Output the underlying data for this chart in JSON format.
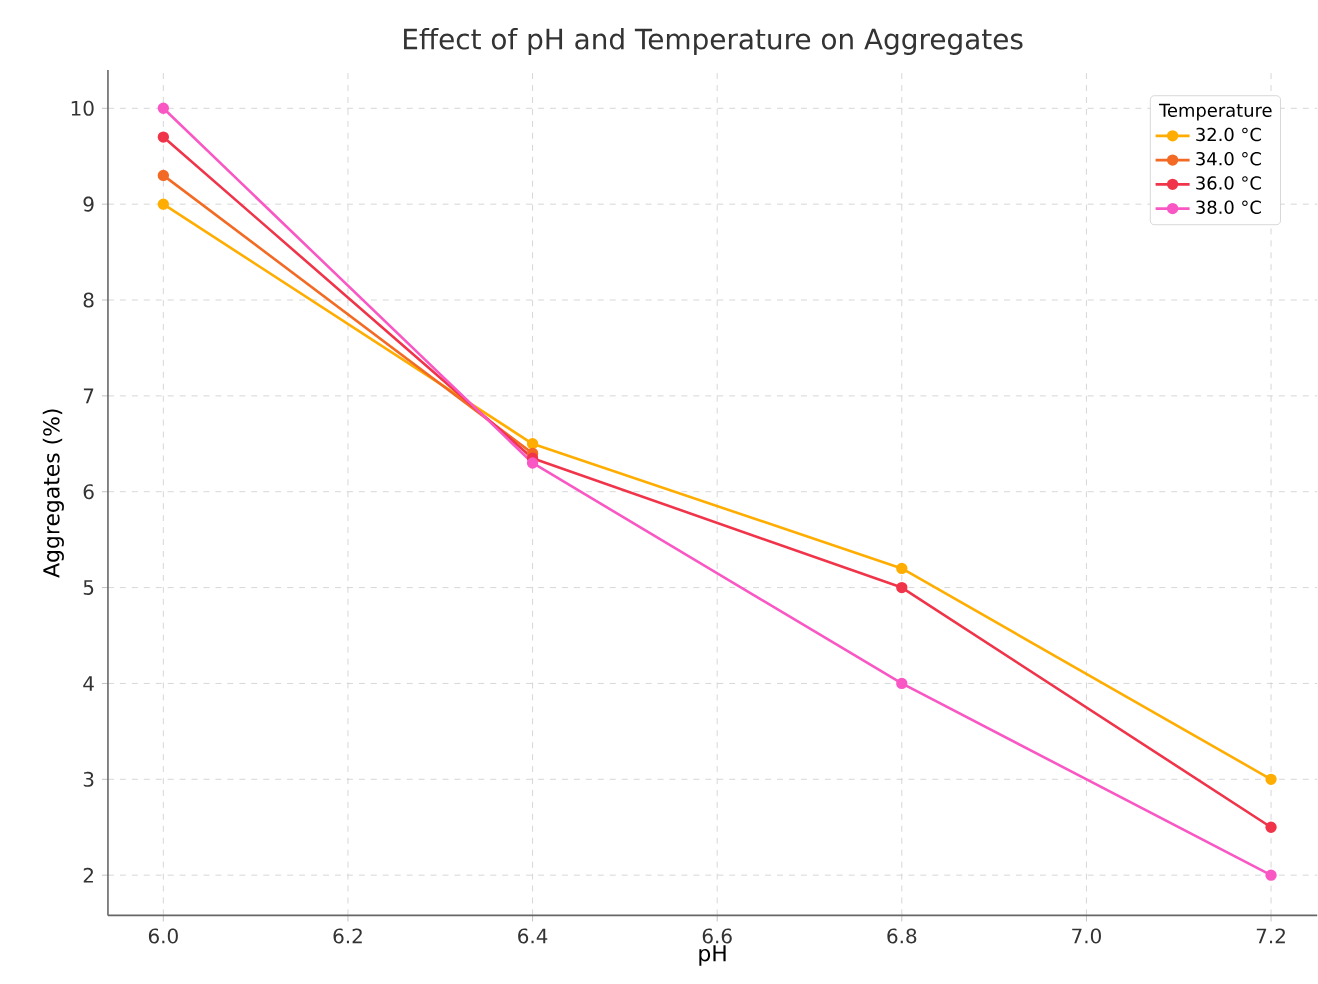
{
  "chart_data": {
    "type": "line",
    "title": "Effect of pH and Temperature on Aggregates",
    "xlabel": "pH",
    "ylabel": "Aggregates (%)",
    "legend_title": "Temperature",
    "x": [
      6.0,
      6.4,
      6.8,
      7.2
    ],
    "series": [
      {
        "name": "32.0 °C",
        "color": "#ffad00",
        "values": [
          9.0,
          6.5,
          5.2,
          3.0
        ]
      },
      {
        "name": "34.0 °C",
        "color": "#f26a24",
        "values": [
          9.3,
          6.4,
          null,
          null
        ]
      },
      {
        "name": "36.0 °C",
        "color": "#f0344a",
        "values": [
          9.7,
          6.35,
          5.0,
          2.5
        ]
      },
      {
        "name": "38.0 °C",
        "color": "#f957c4",
        "values": [
          10.0,
          6.3,
          4.0,
          2.0
        ]
      }
    ],
    "xlim": [
      5.94,
      7.25
    ],
    "ylim": [
      1.58,
      10.4
    ],
    "xticks": [
      {
        "value": 6.0,
        "label": "6.0"
      },
      6.2,
      6.4,
      6.6,
      6.8,
      {
        "value": 7.0,
        "label": "7.0"
      },
      7.2
    ],
    "yticks": [
      2,
      3,
      4,
      5,
      6,
      7,
      8,
      9,
      10
    ],
    "grid": true,
    "legend": "top right",
    "marker": "circle",
    "line_style": "solid"
  }
}
